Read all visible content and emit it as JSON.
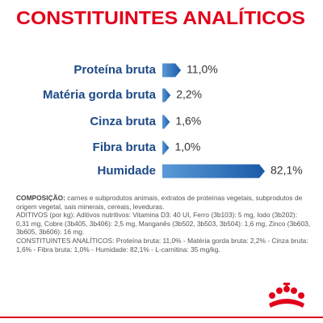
{
  "chart_data": {
    "type": "bar",
    "orientation": "horizontal",
    "title": "CONSTITUINTES ANALÍTICOS",
    "categories": [
      "Proteína bruta",
      "Matéria gorda bruta",
      "Cinza bruta",
      "Fibra bruta",
      "Humidade"
    ],
    "values": [
      11.0,
      2.2,
      1.6,
      1.0,
      82.1
    ],
    "value_labels": [
      "11,0%",
      "2,2%",
      "1,6%",
      "1,0%",
      "82,1%"
    ],
    "color": "#1a5aa8",
    "title_color": "#e2001a",
    "label_color": "#1d4a86"
  },
  "notes": {
    "composition_label": "COMPOSIÇÃO:",
    "composition": "carnes e subprodutos animais, extratos de proteínas vegetais, subprodutos de origem vegetal, sais minerais, cereais, leveduras.",
    "additives": "ADITIVOS (por kg): Aditivos nutritivos: Vitamina D3: 40 UI, Ferro (3b103): 5 mg, Iodo (3b202): 0,31 mg, Cobre (3b405, 3b406): 2,5 mg, Manganês (3b502, 3b503, 3b504): 1,6 mg, Zinco (3b603, 3b605, 3b606): 16 mg.",
    "analytical": "CONSTITUINTES ANALÍTICOS: Proteína bruta: 11,0% - Matéria gorda bruta: 2,2% - Cinza bruta: 1,6% - Fibra bruta: 1,0% - Humidade: 82,1% - L-carnitina: 35 mg/kg."
  }
}
